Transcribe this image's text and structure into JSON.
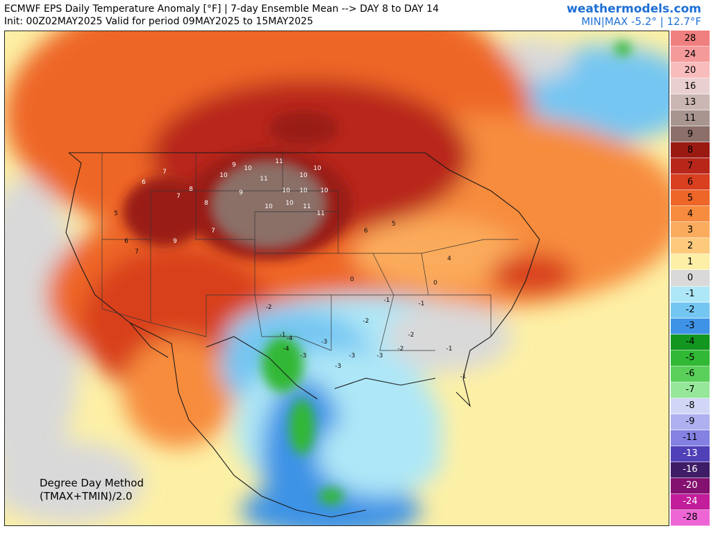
{
  "header": {
    "title": "ECMWF EPS Daily Temperature Anomaly [°F] | 7-day Ensemble Mean --> DAY 8 to DAY 14",
    "subtitle": "Init: 00Z02MAY2025 Valid for period 09MAY2025 to 15MAY2025",
    "brand": "weathermodels.com",
    "minmax": "MIN|MAX -5.2° | 12.7°F"
  },
  "method": {
    "line1": "Degree Day Method",
    "line2": "(TMAX+TMIN)/2.0"
  },
  "legend": [
    {
      "label": "28",
      "color": "#f07f7f"
    },
    {
      "label": "24",
      "color": "#f59a9a"
    },
    {
      "label": "20",
      "color": "#f9bcbc"
    },
    {
      "label": "16",
      "color": "#e9cfcf"
    },
    {
      "label": "13",
      "color": "#cab7b3"
    },
    {
      "label": "11",
      "color": "#a89590"
    },
    {
      "label": "9",
      "color": "#8b6f68"
    },
    {
      "label": "8",
      "color": "#9a1a12"
    },
    {
      "label": "7",
      "color": "#b8261a"
    },
    {
      "label": "6",
      "color": "#d8401f"
    },
    {
      "label": "5",
      "color": "#ee6628"
    },
    {
      "label": "4",
      "color": "#f78c3e"
    },
    {
      "label": "3",
      "color": "#fbab5c"
    },
    {
      "label": "2",
      "color": "#fdca7c"
    },
    {
      "label": "1",
      "color": "#fdf0a6"
    },
    {
      "label": "0",
      "color": "#d9d9d9"
    },
    {
      "label": "-1",
      "color": "#aee7f7"
    },
    {
      "label": "-2",
      "color": "#74c6f2"
    },
    {
      "label": "-3",
      "color": "#3e93e6"
    },
    {
      "label": "-4",
      "color": "#12961f"
    },
    {
      "label": "-5",
      "color": "#31b834"
    },
    {
      "label": "-6",
      "color": "#5ad05a"
    },
    {
      "label": "-7",
      "color": "#97e79a"
    },
    {
      "label": "-8",
      "color": "#d2d6f6"
    },
    {
      "label": "-9",
      "color": "#aeb0ef"
    },
    {
      "label": "-11",
      "color": "#8481e2"
    },
    {
      "label": "-13",
      "color": "#5041b8"
    },
    {
      "label": "-16",
      "color": "#3f1c66"
    },
    {
      "label": "-20",
      "color": "#84106f"
    },
    {
      "label": "-24",
      "color": "#c21d9b"
    },
    {
      "label": "-28",
      "color": "#ee65d6"
    }
  ],
  "map_labels": {
    "warm": [
      "9",
      "10",
      "10",
      "11",
      "10",
      "10",
      "11",
      "10",
      "10",
      "10",
      "10",
      "11",
      "10",
      "11",
      "9",
      "8",
      "7",
      "7",
      "6",
      "8",
      "7",
      "9",
      "5",
      "6",
      "7",
      "5",
      "6",
      "4"
    ],
    "cool": [
      "-1",
      "-2",
      "-3",
      "-4",
      "-3",
      "-3",
      "-2",
      "-1",
      "-3",
      "-4",
      "-2",
      "-3",
      "-1",
      "0",
      "0",
      "-1",
      "-2",
      "-1"
    ]
  }
}
